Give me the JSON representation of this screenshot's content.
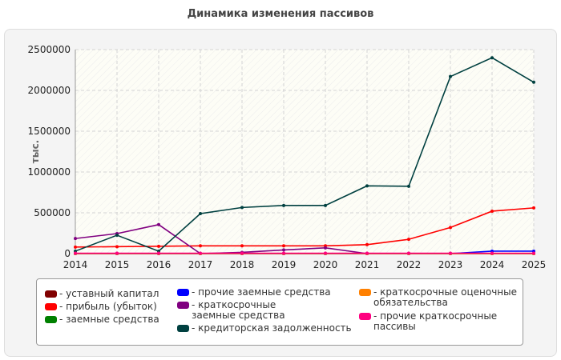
{
  "chart_data": {
    "type": "line",
    "title": "Динамика изменения пассивов",
    "ylabel": "тыс.",
    "xlabel": "",
    "x": [
      "2014",
      "2015",
      "2016",
      "2017",
      "2018",
      "2019",
      "2020",
      "2021",
      "2022",
      "2023",
      "2024",
      "2025"
    ],
    "ylim": [
      0,
      2500000
    ],
    "yticks": [
      "0",
      "500000",
      "1000000",
      "1500000",
      "2000000",
      "2500000"
    ],
    "grid": true,
    "legend_position": "bottom",
    "series": [
      {
        "name": "устaвный капитал",
        "color": "#800000",
        "values": [
          10,
          10,
          10,
          10,
          10,
          10,
          10,
          10,
          10,
          10,
          10,
          10
        ]
      },
      {
        "name": "прибыль (убыток)",
        "color": "#ff0000",
        "values": [
          80000,
          85000,
          90000,
          95000,
          95000,
          95000,
          95000,
          110000,
          175000,
          320000,
          520000,
          560000
        ]
      },
      {
        "name": "заемные средства",
        "color": "#008000",
        "values": [
          0,
          0,
          0,
          0,
          0,
          0,
          0,
          0,
          0,
          0,
          0,
          0
        ]
      },
      {
        "name": "прочие заемные средства",
        "color": "#0000ff",
        "values": [
          0,
          0,
          0,
          0,
          0,
          0,
          0,
          0,
          0,
          0,
          30000,
          30000
        ]
      },
      {
        "name": "краткосрочные заемные средства",
        "color": "#800080",
        "values": [
          185000,
          245000,
          355000,
          0,
          15000,
          45000,
          70000,
          0,
          0,
          0,
          0,
          0
        ]
      },
      {
        "name": "кредиторская задолженность",
        "color": "#004040",
        "values": [
          30000,
          225000,
          30000,
          490000,
          565000,
          590000,
          590000,
          830000,
          825000,
          2170000,
          2400000,
          2100000
        ]
      },
      {
        "name": "краткосрочные оценочные обязательства",
        "color": "#ff8000",
        "values": [
          0,
          0,
          0,
          0,
          0,
          0,
          0,
          0,
          0,
          0,
          0,
          0
        ]
      },
      {
        "name": "прочие краткосрочные пассивы",
        "color": "#ff0080",
        "values": [
          5000,
          5000,
          5000,
          5000,
          5000,
          5000,
          5000,
          5000,
          5000,
          5000,
          5000,
          5000
        ]
      }
    ]
  },
  "legend_labels": [
    "- уставный капитал",
    "- прибыль (убыток)",
    "- заемные средства",
    "- прочие заемные средства",
    "- краткосрочные заемные средства",
    "- кредиторская задолженность",
    "- краткосрочные оценочные обязательства",
    "- прочие краткосрочные пассивы"
  ]
}
